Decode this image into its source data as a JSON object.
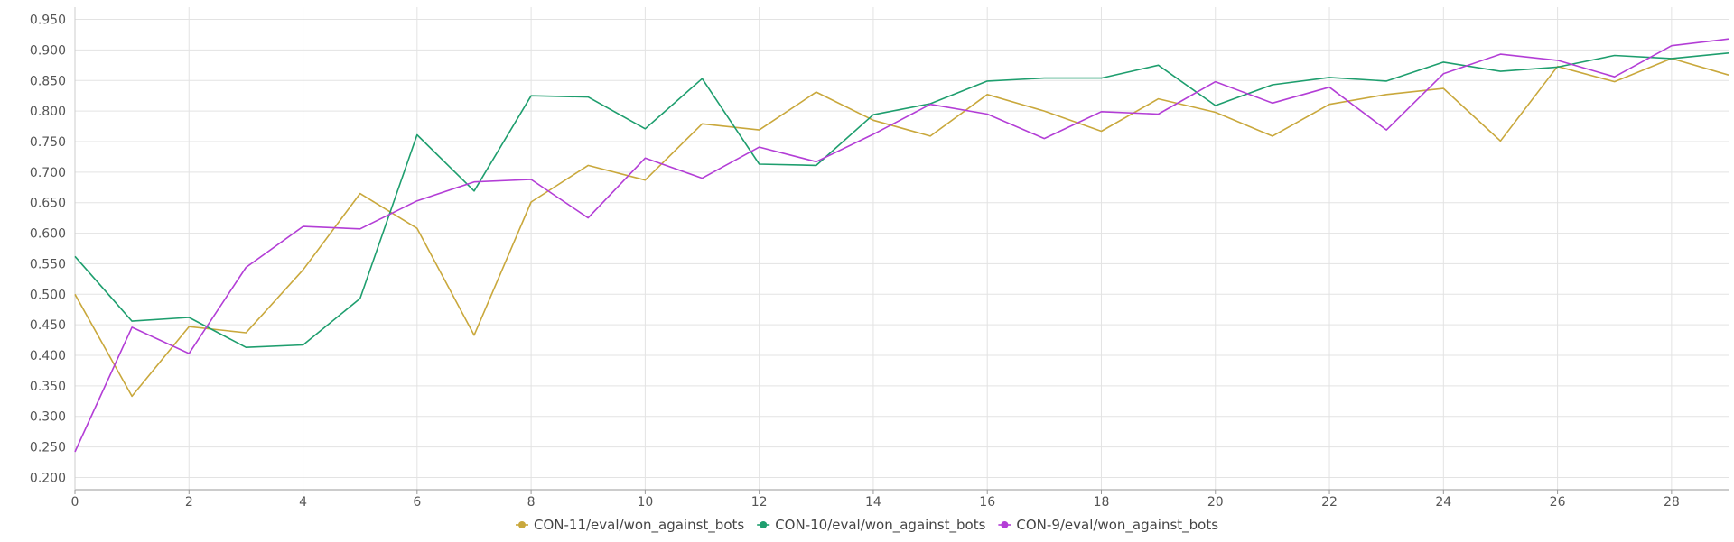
{
  "chart_data": {
    "type": "line",
    "x": [
      0,
      1,
      2,
      3,
      4,
      5,
      6,
      7,
      8,
      9,
      10,
      11,
      12,
      13,
      14,
      15,
      16,
      17,
      18,
      19,
      20,
      21,
      22,
      23,
      24,
      25,
      26,
      27,
      28,
      29
    ],
    "xlim": [
      0,
      29
    ],
    "ylim": [
      0.18,
      0.97
    ],
    "xticks": [
      0,
      2,
      4,
      6,
      8,
      10,
      12,
      14,
      16,
      18,
      20,
      22,
      24,
      26,
      28
    ],
    "xtick_labels": [
      "0",
      "2",
      "4",
      "6",
      "8",
      "10",
      "12",
      "14",
      "16",
      "18",
      "20",
      "22",
      "24",
      "26",
      "28"
    ],
    "yticks": [
      0.2,
      0.25,
      0.3,
      0.35,
      0.4,
      0.45,
      0.5,
      0.55,
      0.6,
      0.65,
      0.7,
      0.75,
      0.8,
      0.85,
      0.9,
      0.95
    ],
    "ytick_labels": [
      "0.200",
      "0.250",
      "0.300",
      "0.350",
      "0.400",
      "0.450",
      "0.500",
      "0.550",
      "0.600",
      "0.650",
      "0.700",
      "0.750",
      "0.800",
      "0.850",
      "0.900",
      "0.950"
    ],
    "grid": true,
    "legend_position": "bottom-center",
    "series": [
      {
        "name": "CON-11/eval/won_against_bots",
        "color": "#c9a83c",
        "values": [
          0.5,
          0.333,
          0.447,
          0.437,
          0.54,
          0.665,
          0.608,
          0.433,
          0.651,
          0.711,
          0.687,
          0.779,
          0.769,
          0.831,
          0.785,
          0.759,
          0.827,
          0.8,
          0.767,
          0.82,
          0.798,
          0.759,
          0.811,
          0.827,
          0.837,
          0.751,
          0.873,
          0.848,
          0.886,
          0.859
        ]
      },
      {
        "name": "CON-10/eval/won_against_bots",
        "color": "#1e9e6e",
        "values": [
          0.562,
          0.456,
          0.462,
          0.413,
          0.417,
          0.493,
          0.761,
          0.669,
          0.825,
          0.823,
          0.771,
          0.853,
          0.713,
          0.711,
          0.794,
          0.812,
          0.849,
          0.854,
          0.854,
          0.875,
          0.809,
          0.843,
          0.855,
          0.849,
          0.88,
          0.865,
          0.872,
          0.891,
          0.886,
          0.895
        ]
      },
      {
        "name": "CON-9/eval/won_against_bots",
        "color": "#b33ed6",
        "values": [
          0.242,
          0.446,
          0.403,
          0.544,
          0.611,
          0.607,
          0.653,
          0.684,
          0.688,
          0.625,
          0.723,
          0.69,
          0.741,
          0.717,
          0.762,
          0.811,
          0.795,
          0.755,
          0.799,
          0.795,
          0.848,
          0.813,
          0.839,
          0.769,
          0.861,
          0.893,
          0.883,
          0.856,
          0.907,
          0.918
        ]
      }
    ]
  }
}
